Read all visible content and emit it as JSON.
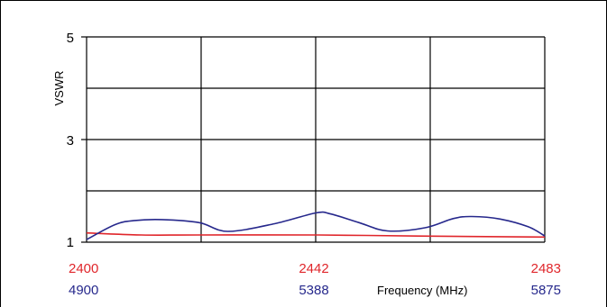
{
  "chart_data": {
    "type": "line",
    "ylabel": "VSWR",
    "xlabel": "Frequency (MHz)",
    "ylim": [
      1,
      5
    ],
    "y_tick_labels": [
      "5",
      "3",
      "1"
    ],
    "y_ticks": [
      5,
      3,
      1
    ],
    "y_grid": [
      1,
      2,
      3,
      4,
      5
    ],
    "x_grid_divisions": 4,
    "grid": true,
    "colors": {
      "red": "#e0262b",
      "blue": "#26288c"
    },
    "x_tick_labels": {
      "red": [
        "2400",
        "2442",
        "2483"
      ],
      "blue": [
        "4900",
        "5388",
        "5875"
      ]
    },
    "series": [
      {
        "color": "#e0262b",
        "x": [
          2400,
          2410,
          2420,
          2442,
          2460,
          2483
        ],
        "values": [
          1.18,
          1.14,
          1.14,
          1.14,
          1.12,
          1.1
        ]
      },
      {
        "color": "#26288c",
        "x": [
          4900,
          4960,
          5000,
          5060,
          5140,
          5200,
          5300,
          5388,
          5420,
          5480,
          5540,
          5620,
          5680,
          5720,
          5780,
          5840,
          5875
        ],
        "values": [
          1.05,
          1.34,
          1.42,
          1.44,
          1.38,
          1.21,
          1.36,
          1.57,
          1.55,
          1.38,
          1.22,
          1.28,
          1.46,
          1.5,
          1.45,
          1.3,
          1.12
        ]
      }
    ]
  }
}
